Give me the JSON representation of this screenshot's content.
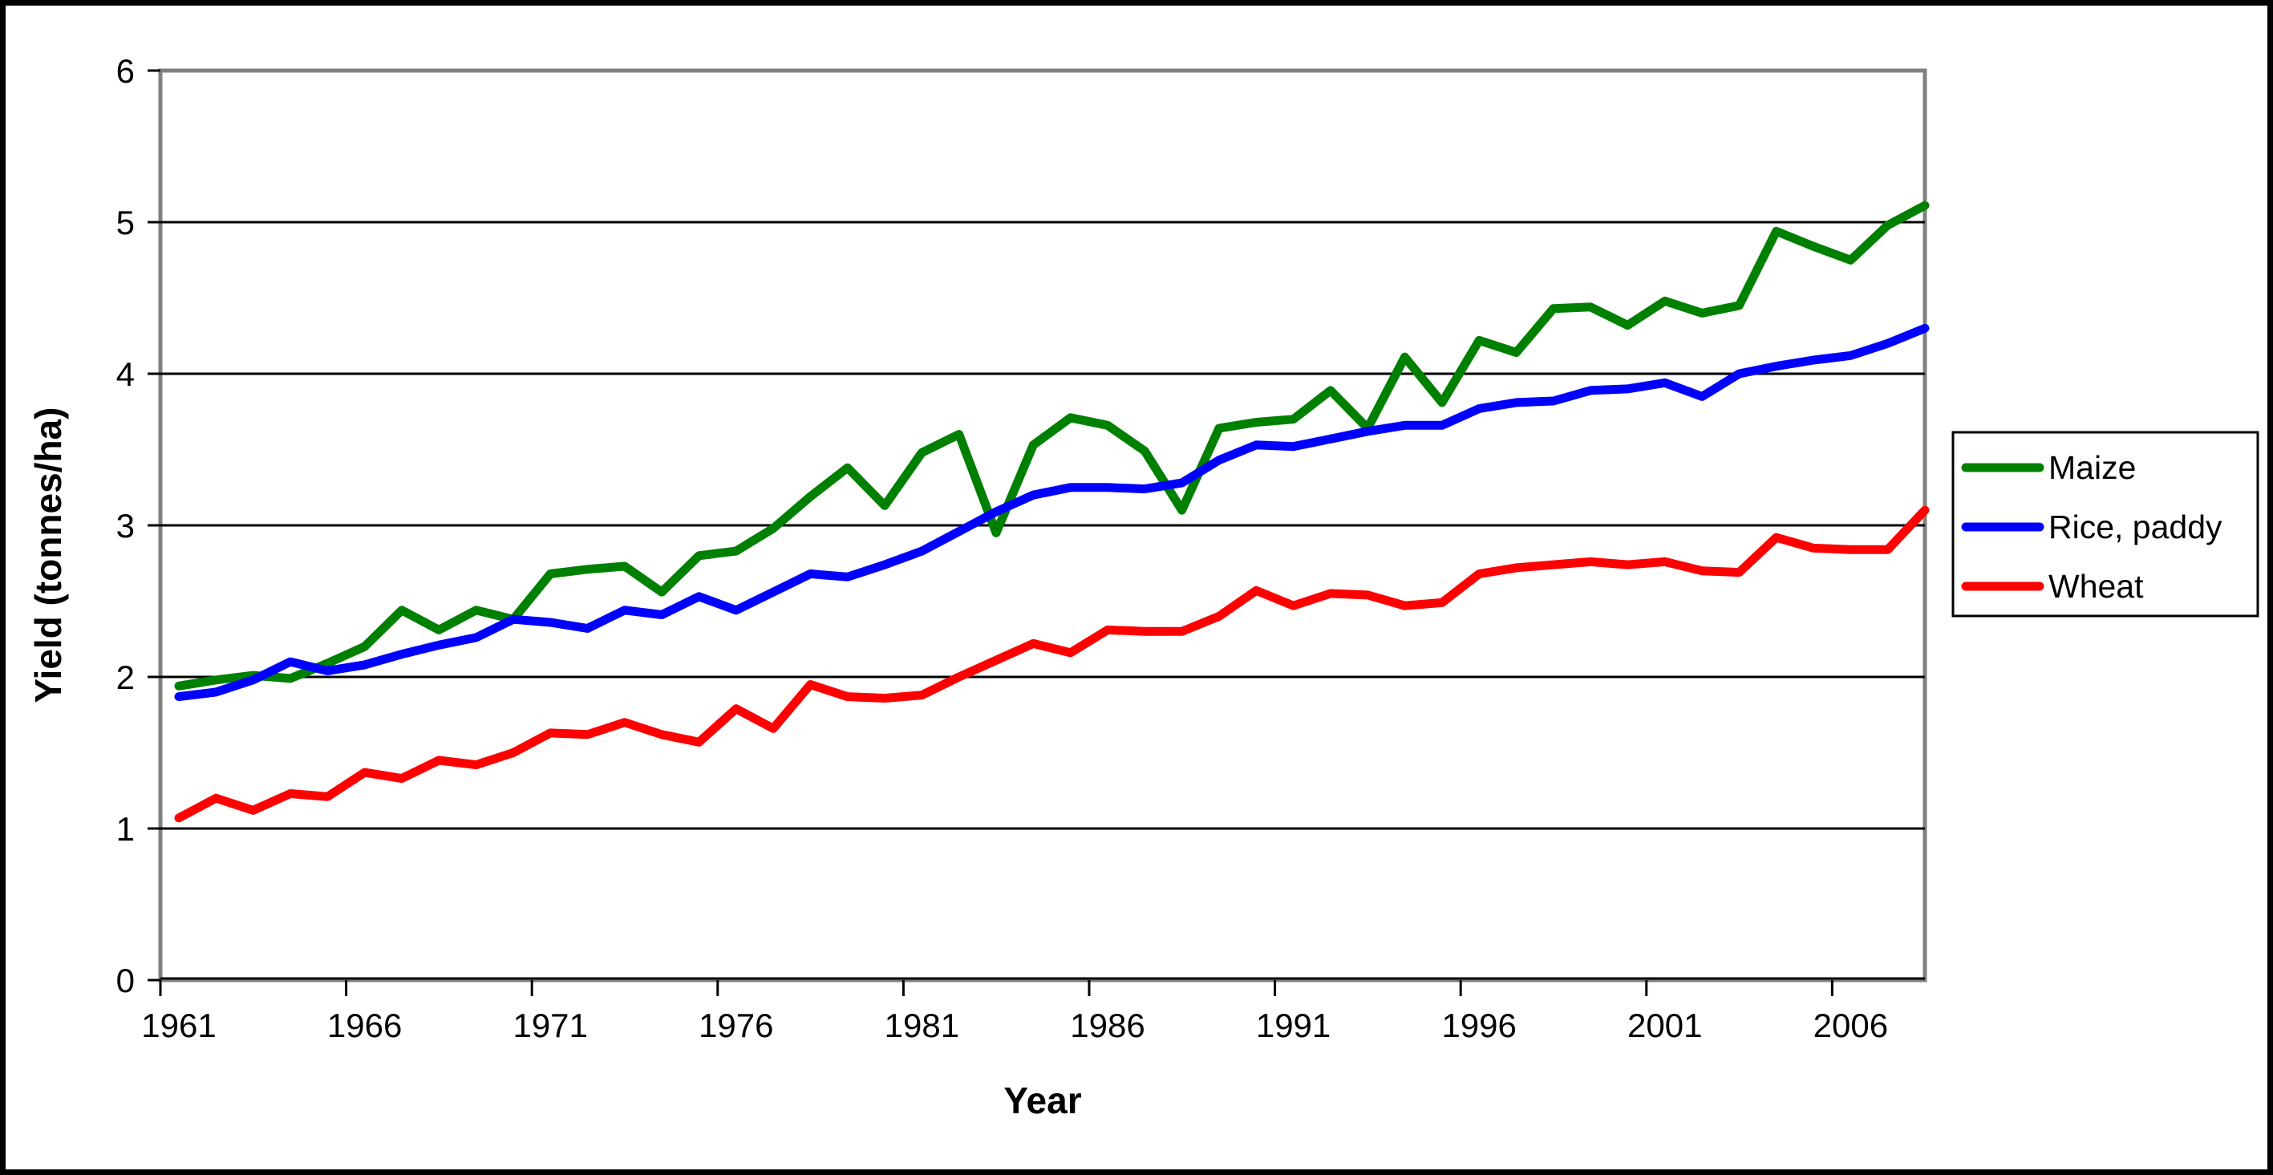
{
  "figure": {
    "background_color": "#FFFFFF",
    "outer_border_color": "#000000",
    "plot_border_color": "#808080",
    "gridline_color": "#000000"
  },
  "chart_data": {
    "type": "line",
    "title": "",
    "xlabel": "Year",
    "ylabel": "Yield (tonnes/ha)",
    "ylim": [
      0,
      6
    ],
    "yticks": [
      0,
      1,
      2,
      3,
      4,
      5,
      6
    ],
    "xtick_labels": [
      "1961",
      "1966",
      "1971",
      "1976",
      "1981",
      "1986",
      "1991",
      "1996",
      "2001",
      "2006"
    ],
    "grid": "horizontal",
    "legend_position": "right",
    "x": [
      1961,
      1962,
      1963,
      1964,
      1965,
      1966,
      1967,
      1968,
      1969,
      1970,
      1971,
      1972,
      1973,
      1974,
      1975,
      1976,
      1977,
      1978,
      1979,
      1980,
      1981,
      1982,
      1983,
      1984,
      1985,
      1986,
      1987,
      1988,
      1989,
      1990,
      1991,
      1992,
      1993,
      1994,
      1995,
      1996,
      1997,
      1998,
      1999,
      2000,
      2001,
      2002,
      2003,
      2004,
      2005,
      2006,
      2007,
      2008
    ],
    "series": [
      {
        "name": "Maize",
        "color": "#008000",
        "values": [
          1.94,
          1.98,
          2.01,
          1.99,
          2.09,
          2.2,
          2.44,
          2.31,
          2.44,
          2.38,
          2.68,
          2.71,
          2.73,
          2.56,
          2.8,
          2.83,
          2.98,
          3.19,
          3.38,
          3.13,
          3.48,
          3.6,
          2.95,
          3.53,
          3.71,
          3.66,
          3.49,
          3.1,
          3.64,
          3.68,
          3.7,
          3.89,
          3.64,
          4.11,
          3.81,
          4.22,
          4.14,
          4.43,
          4.44,
          4.32,
          4.48,
          4.4,
          4.45,
          4.94,
          4.84,
          4.75,
          4.98,
          5.11
        ]
      },
      {
        "name": "Rice, paddy",
        "color": "#0000FF",
        "values": [
          1.87,
          1.9,
          1.98,
          2.1,
          2.04,
          2.08,
          2.15,
          2.21,
          2.26,
          2.38,
          2.36,
          2.32,
          2.44,
          2.41,
          2.53,
          2.44,
          2.56,
          2.68,
          2.66,
          2.74,
          2.83,
          2.96,
          3.09,
          3.2,
          3.25,
          3.25,
          3.24,
          3.28,
          3.43,
          3.53,
          3.52,
          3.57,
          3.62,
          3.66,
          3.66,
          3.77,
          3.81,
          3.82,
          3.89,
          3.9,
          3.94,
          3.85,
          4.0,
          4.05,
          4.09,
          4.12,
          4.2,
          4.3
        ]
      },
      {
        "name": "Wheat",
        "color": "#FF0000",
        "values": [
          1.07,
          1.2,
          1.12,
          1.23,
          1.21,
          1.37,
          1.33,
          1.45,
          1.42,
          1.5,
          1.63,
          1.62,
          1.7,
          1.62,
          1.57,
          1.79,
          1.66,
          1.95,
          1.87,
          1.86,
          1.88,
          2.0,
          2.11,
          2.22,
          2.16,
          2.31,
          2.3,
          2.3,
          2.4,
          2.57,
          2.47,
          2.55,
          2.54,
          2.47,
          2.49,
          2.68,
          2.72,
          2.74,
          2.76,
          2.74,
          2.76,
          2.7,
          2.69,
          2.92,
          2.85,
          2.84,
          2.84,
          3.1
        ]
      }
    ]
  }
}
